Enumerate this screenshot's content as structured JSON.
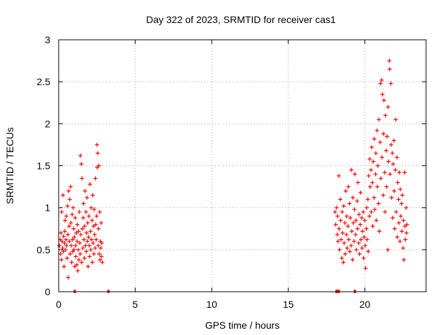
{
  "chart_data": {
    "type": "scatter",
    "title": "Day 322 of 2023, SRMTID for receiver cas1",
    "xlabel": "GPS time / hours",
    "ylabel": "SRMTID / TECUs",
    "xlim": [
      0,
      24
    ],
    "ylim": [
      0,
      3
    ],
    "xticks": [
      0,
      5,
      10,
      15,
      20
    ],
    "yticks": [
      0,
      0.5,
      1,
      1.5,
      2,
      2.5,
      3
    ],
    "xtick_labels": [
      "0",
      "5",
      "10",
      "15",
      "20"
    ],
    "ytick_labels": [
      "0",
      "0.5",
      "1",
      "1.5",
      "2",
      "2.5",
      "3"
    ],
    "grid": true,
    "marker": "+",
    "color": "#ff0000",
    "series": [
      {
        "name": "SRMTID",
        "points": [
          [
            0.05,
            0.55
          ],
          [
            0.1,
            0.62
          ],
          [
            0.12,
            0.45
          ],
          [
            0.15,
            0.7
          ],
          [
            0.18,
            0.38
          ],
          [
            0.2,
            0.95
          ],
          [
            0.22,
            0.6
          ],
          [
            0.25,
            0.52
          ],
          [
            0.28,
            1.15
          ],
          [
            0.3,
            0.48
          ],
          [
            0.32,
            0.66
          ],
          [
            0.35,
            0.3
          ],
          [
            0.38,
            0.58
          ],
          [
            0.4,
            0.72
          ],
          [
            0.42,
            0.85
          ],
          [
            0.45,
            0.5
          ],
          [
            0.48,
            0.62
          ],
          [
            0.5,
            0.9
          ],
          [
            0.52,
            0.55
          ],
          [
            0.55,
            0.4
          ],
          [
            0.58,
            1.02
          ],
          [
            0.6,
            0.68
          ],
          [
            0.62,
            0.17
          ],
          [
            0.65,
            1.2
          ],
          [
            0.68,
            0.78
          ],
          [
            0.7,
            0.6
          ],
          [
            0.72,
            1.1
          ],
          [
            0.75,
            0.45
          ],
          [
            0.78,
            1.25
          ],
          [
            0.8,
            0.82
          ],
          [
            0.82,
            0.55
          ],
          [
            0.85,
            0.35
          ],
          [
            0.88,
            0.92
          ],
          [
            0.9,
            0.62
          ],
          [
            0.92,
            0.48
          ],
          [
            0.95,
            1.0
          ],
          [
            0.98,
            0.75
          ],
          [
            1.0,
            0.5
          ],
          [
            1.02,
            0.65
          ],
          [
            1.05,
            0.3
          ],
          [
            1.08,
            0.88
          ],
          [
            1.1,
            0.55
          ],
          [
            1.12,
            0.42
          ],
          [
            1.15,
            0.7
          ],
          [
            1.18,
            0.32
          ],
          [
            1.2,
            0.6
          ],
          [
            1.22,
            0.8
          ],
          [
            1.25,
            0.25
          ],
          [
            1.28,
            0.5
          ],
          [
            1.3,
            0.72
          ],
          [
            1.32,
            0.38
          ],
          [
            1.35,
            0.95
          ],
          [
            1.38,
            0.58
          ],
          [
            1.4,
            0.45
          ],
          [
            1.42,
            1.62
          ],
          [
            1.45,
            0.68
          ],
          [
            1.48,
            1.52
          ],
          [
            1.5,
            0.35
          ],
          [
            1.52,
            1.35
          ],
          [
            1.55,
            0.75
          ],
          [
            1.58,
            0.52
          ],
          [
            1.6,
            0.88
          ],
          [
            1.62,
            1.05
          ],
          [
            1.65,
            0.62
          ],
          [
            1.68,
            0.4
          ],
          [
            1.7,
            0.78
          ],
          [
            1.72,
            1.2
          ],
          [
            1.75,
            0.55
          ],
          [
            1.78,
            0.95
          ],
          [
            1.8,
            0.48
          ],
          [
            1.82,
            0.7
          ],
          [
            1.85,
            1.12
          ],
          [
            1.88,
            0.6
          ],
          [
            1.9,
            0.82
          ],
          [
            1.92,
            0.3
          ],
          [
            1.95,
            0.65
          ],
          [
            1.98,
            0.9
          ],
          [
            2.0,
            0.55
          ],
          [
            2.02,
            0.42
          ],
          [
            2.05,
            1.28
          ],
          [
            2.08,
            0.72
          ],
          [
            2.1,
            0.5
          ],
          [
            2.12,
            1.0
          ],
          [
            2.15,
            0.62
          ],
          [
            2.18,
            0.85
          ],
          [
            2.2,
            0.35
          ],
          [
            2.22,
            1.15
          ],
          [
            2.25,
            0.58
          ],
          [
            2.28,
            0.78
          ],
          [
            2.3,
            0.45
          ],
          [
            2.32,
            0.98
          ],
          [
            2.35,
            0.68
          ],
          [
            2.38,
            0.52
          ],
          [
            2.4,
            1.35
          ],
          [
            2.42,
            0.8
          ],
          [
            2.45,
            0.62
          ],
          [
            2.48,
            0.9
          ],
          [
            2.5,
            1.75
          ],
          [
            2.52,
            1.48
          ],
          [
            2.55,
            1.65
          ],
          [
            2.58,
            0.55
          ],
          [
            2.6,
            0.75
          ],
          [
            2.62,
            1.5
          ],
          [
            2.65,
            0.45
          ],
          [
            2.68,
            0.95
          ],
          [
            2.7,
            0.38
          ],
          [
            2.72,
            0.6
          ],
          [
            2.75,
            0.52
          ],
          [
            2.78,
            0.82
          ],
          [
            2.8,
            0.42
          ],
          [
            2.82,
            0.58
          ],
          [
            2.85,
            0.35
          ],
          [
            18.05,
            0.95
          ],
          [
            18.1,
            0.8
          ],
          [
            18.15,
            1.0
          ],
          [
            18.2,
            0.68
          ],
          [
            18.22,
            0.9
          ],
          [
            18.25,
            0.6
          ],
          [
            18.3,
            1.38
          ],
          [
            18.32,
            0.75
          ],
          [
            18.35,
            0.5
          ],
          [
            18.4,
            1.1
          ],
          [
            18.42,
            0.85
          ],
          [
            18.45,
            0.62
          ],
          [
            18.5,
            0.4
          ],
          [
            18.52,
            0.95
          ],
          [
            18.55,
            0.7
          ],
          [
            18.6,
            0.35
          ],
          [
            18.62,
            1.02
          ],
          [
            18.65,
            0.58
          ],
          [
            18.7,
            0.82
          ],
          [
            18.72,
            0.45
          ],
          [
            18.75,
            1.2
          ],
          [
            18.8,
            0.68
          ],
          [
            18.82,
            0.9
          ],
          [
            18.85,
            0.52
          ],
          [
            18.9,
            0.78
          ],
          [
            18.92,
            1.25
          ],
          [
            18.95,
            0.62
          ],
          [
            19.0,
            1.05
          ],
          [
            19.02,
            0.48
          ],
          [
            19.05,
            0.88
          ],
          [
            19.1,
            0.55
          ],
          [
            19.12,
            1.45
          ],
          [
            19.15,
            0.72
          ],
          [
            19.2,
            0.38
          ],
          [
            19.22,
            1.12
          ],
          [
            19.25,
            0.82
          ],
          [
            19.3,
            0.6
          ],
          [
            19.32,
            0.98
          ],
          [
            19.35,
            1.4
          ],
          [
            19.4,
            0.68
          ],
          [
            19.42,
            0.85
          ],
          [
            19.45,
            0.5
          ],
          [
            19.5,
            1.08
          ],
          [
            19.52,
            0.75
          ],
          [
            19.55,
            1.3
          ],
          [
            19.6,
            0.58
          ],
          [
            19.62,
            0.92
          ],
          [
            19.65,
            0.45
          ],
          [
            19.7,
            0.8
          ],
          [
            19.72,
            1.18
          ],
          [
            19.75,
            0.62
          ],
          [
            19.8,
            0.88
          ],
          [
            19.82,
            0.52
          ],
          [
            19.85,
            0.72
          ],
          [
            19.9,
            0.95
          ],
          [
            19.92,
            0.4
          ],
          [
            19.95,
            0.65
          ],
          [
            20.0,
            0.85
          ],
          [
            20.02,
            0.55
          ],
          [
            20.05,
            0.28
          ],
          [
            20.1,
            0.75
          ],
          [
            20.12,
            1.0
          ],
          [
            20.15,
            0.62
          ],
          [
            20.2,
            1.1
          ],
          [
            20.22,
            0.48
          ],
          [
            20.25,
            1.38
          ],
          [
            20.3,
            0.9
          ],
          [
            20.32,
            1.58
          ],
          [
            20.35,
            1.25
          ],
          [
            20.4,
            1.45
          ],
          [
            20.42,
            0.95
          ],
          [
            20.45,
            1.72
          ],
          [
            20.5,
            1.3
          ],
          [
            20.52,
            0.78
          ],
          [
            20.55,
            1.55
          ],
          [
            20.6,
            1.12
          ],
          [
            20.62,
            1.82
          ],
          [
            20.65,
            0.98
          ],
          [
            20.7,
            1.4
          ],
          [
            20.72,
            1.65
          ],
          [
            20.75,
            0.85
          ],
          [
            20.8,
            1.92
          ],
          [
            20.82,
            1.25
          ],
          [
            20.85,
            1.5
          ],
          [
            20.9,
            1.05
          ],
          [
            20.92,
            2.05
          ],
          [
            20.95,
            0.72
          ],
          [
            21.0,
            1.78
          ],
          [
            21.02,
            2.48
          ],
          [
            21.05,
            1.35
          ],
          [
            21.1,
            2.52
          ],
          [
            21.12,
            1.6
          ],
          [
            21.15,
            2.35
          ],
          [
            21.2,
            1.15
          ],
          [
            21.22,
            1.88
          ],
          [
            21.25,
            2.28
          ],
          [
            21.3,
            1.42
          ],
          [
            21.32,
            0.95
          ],
          [
            21.35,
            2.1
          ],
          [
            21.4,
            1.68
          ],
          [
            21.42,
            1.25
          ],
          [
            21.45,
            1.85
          ],
          [
            21.5,
            0.5
          ],
          [
            21.52,
            2.2
          ],
          [
            21.55,
            1.55
          ],
          [
            21.6,
            2.75
          ],
          [
            21.62,
            2.65
          ],
          [
            21.65,
            1.4
          ],
          [
            21.7,
            2.48
          ],
          [
            21.72,
            1.75
          ],
          [
            21.75,
            1.12
          ],
          [
            21.8,
            1.65
          ],
          [
            21.82,
            0.88
          ],
          [
            21.85,
            1.52
          ],
          [
            21.9,
            1.8
          ],
          [
            21.92,
            1.2
          ],
          [
            21.95,
            0.75
          ],
          [
            22.0,
            1.45
          ],
          [
            22.02,
            2.05
          ],
          [
            22.05,
            0.95
          ],
          [
            22.1,
            1.6
          ],
          [
            22.12,
            0.65
          ],
          [
            22.15,
            1.3
          ],
          [
            22.2,
            1.1
          ],
          [
            22.22,
            0.82
          ],
          [
            22.25,
            1.42
          ],
          [
            22.3,
            0.6
          ],
          [
            22.32,
            1.22
          ],
          [
            22.35,
            0.9
          ],
          [
            22.4,
            1.05
          ],
          [
            22.42,
            0.72
          ],
          [
            22.45,
            1.15
          ],
          [
            22.5,
            0.52
          ],
          [
            22.52,
            0.85
          ],
          [
            22.55,
            0.38
          ],
          [
            22.6,
            1.42
          ],
          [
            22.62,
            0.78
          ],
          [
            22.65,
            0.62
          ],
          [
            22.7,
            1.0
          ],
          [
            22.72,
            0.7
          ],
          [
            22.75,
            0.8
          ]
        ]
      }
    ],
    "zero_markers": [
      1.05,
      3.25,
      18.15,
      18.3,
      19.35
    ]
  }
}
